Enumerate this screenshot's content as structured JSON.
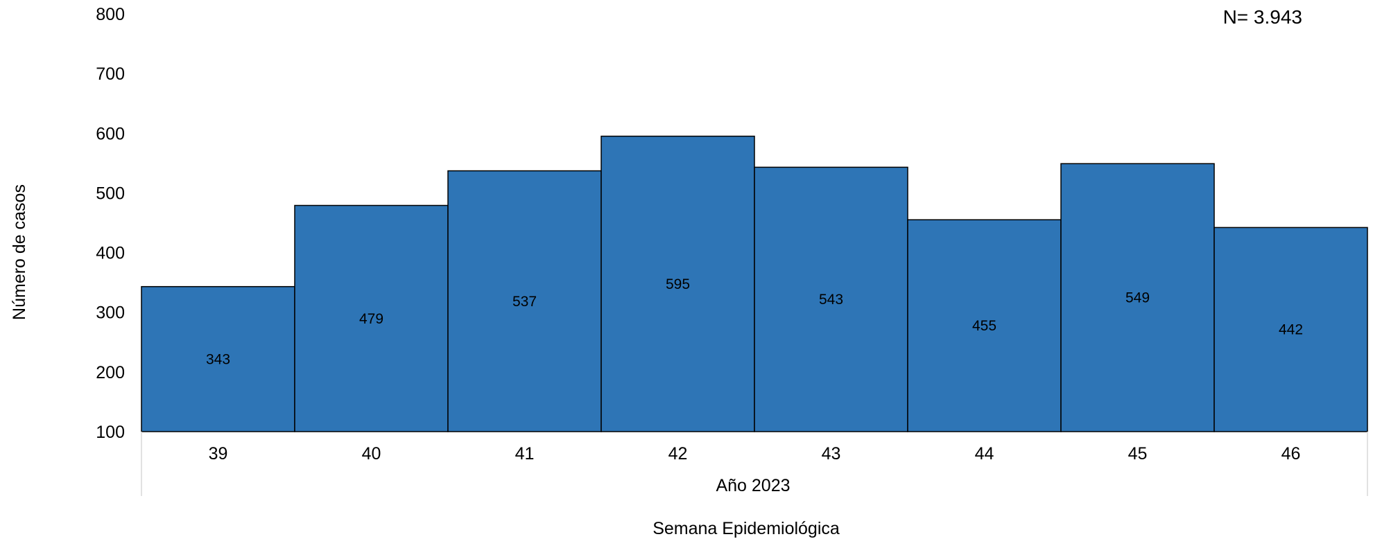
{
  "chart_data": {
    "type": "bar",
    "categories": [
      "39",
      "40",
      "41",
      "42",
      "43",
      "44",
      "45",
      "46"
    ],
    "values": [
      343,
      479,
      537,
      595,
      543,
      455,
      549,
      442
    ],
    "data_labels": [
      "343",
      "479",
      "537",
      "595",
      "543",
      "455",
      "549",
      "442"
    ],
    "y_ticks": [
      "100",
      "200",
      "300",
      "400",
      "500",
      "600",
      "700",
      "800"
    ],
    "ylim": [
      100,
      800
    ],
    "group_label": "Año 2023",
    "xlabel": "Semana Epidemiológica",
    "ylabel": "Número de casos",
    "annotation": "N= 3.943",
    "bar_color": "#2e75b6",
    "bar_border_color": "#000000",
    "grid": false
  }
}
